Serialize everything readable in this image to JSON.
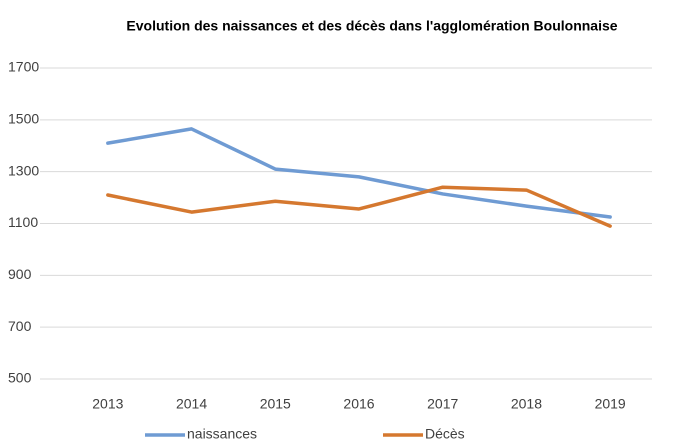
{
  "chart_data": {
    "type": "line",
    "title": "Evolution  des naissances  et des décès dans l'agglomération  Boulonnaise",
    "categories": [
      "2013",
      "2014",
      "2015",
      "2016",
      "2017",
      "2018",
      "2019"
    ],
    "series": [
      {
        "name": "naissances",
        "color": "#6f9bd3",
        "values": [
          1410,
          1465,
          1310,
          1280,
          1214,
          1167,
          1125
        ]
      },
      {
        "name": "Décès",
        "color": "#d5782f",
        "values": [
          1210,
          1144,
          1186,
          1156,
          1240,
          1229,
          1090
        ]
      }
    ],
    "ylim": [
      500,
      1700
    ],
    "yticks": [
      500,
      700,
      900,
      1100,
      1300,
      1500,
      1700
    ],
    "grid": true,
    "legend": "bottom"
  }
}
